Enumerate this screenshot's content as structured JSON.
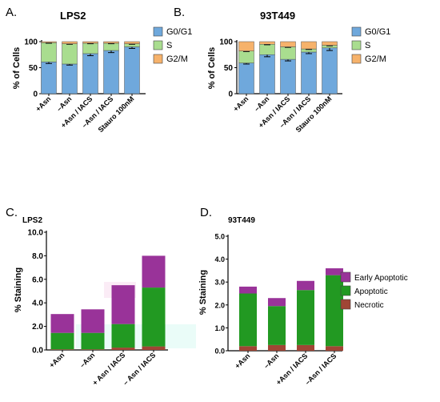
{
  "colors": {
    "g0g1": "#6fa8dc",
    "s": "#a9dd8f",
    "g2m": "#f6b26b",
    "early_apoptotic": "#993399",
    "apoptotic": "#229922",
    "necrotic": "#a04535",
    "axis": "#000000"
  },
  "chart_data": [
    {
      "panel": "A.",
      "type": "bar",
      "stacked": true,
      "title": "LPS2",
      "ylabel": "% of Cells",
      "ylim": [
        0,
        100
      ],
      "yticks": [
        0,
        50,
        100
      ],
      "categories": [
        "+Asn",
        "–Asn",
        "+Asn / IACS",
        "–Asn / IACS",
        "Stauro 100nM"
      ],
      "legend_position": "right",
      "series": [
        {
          "name": "G0/G1",
          "color_key": "g0g1",
          "values": [
            61,
            57,
            77,
            83,
            90
          ]
        },
        {
          "name": "S",
          "color_key": "s",
          "values": [
            37,
            39,
            20,
            14,
            6
          ]
        },
        {
          "name": "G2/M",
          "color_key": "g2m",
          "values": [
            2,
            4,
            3,
            3,
            4
          ]
        }
      ],
      "error_bars": [
        [
          3,
          2,
          4,
          4,
          3
        ],
        [
          1,
          1,
          1,
          1,
          1
        ],
        [
          0,
          0,
          0,
          0,
          0
        ]
      ]
    },
    {
      "panel": "B.",
      "type": "bar",
      "stacked": true,
      "title": "93T449",
      "ylabel": "% of Cells",
      "ylim": [
        0,
        100
      ],
      "yticks": [
        0,
        50,
        100
      ],
      "categories": [
        "+Asn",
        "–Asn",
        "+Asn / IACS",
        "–Asn / IACS",
        "Stauro 100nM"
      ],
      "legend_position": "right",
      "series": [
        {
          "name": "G0/G1",
          "color_key": "g0g1",
          "values": [
            59,
            75,
            66,
            80,
            88
          ]
        },
        {
          "name": "S",
          "color_key": "s",
          "values": [
            23,
            20,
            24,
            6,
            5
          ]
        },
        {
          "name": "G2/M",
          "color_key": "g2m",
          "values": [
            18,
            5,
            10,
            14,
            7
          ]
        }
      ],
      "error_bars": [
        [
          2,
          4,
          3,
          3,
          5
        ],
        [
          1,
          1,
          1,
          1,
          1
        ],
        [
          0,
          0,
          0,
          0,
          0
        ]
      ]
    },
    {
      "panel": "C.",
      "type": "bar",
      "stacked": true,
      "title": "LPS2",
      "ylabel": "% Staining",
      "ylim": [
        0,
        10
      ],
      "yticks": [
        "0.0",
        "2.0",
        "4.0",
        "6.0",
        "8.0",
        "10.0"
      ],
      "categories": [
        "+Asn",
        "–Asn",
        "+ Asn / IACS",
        "– Asn / IACS"
      ],
      "series": [
        {
          "name": "Early Apoptotic",
          "color_key": "early_apoptotic",
          "values": [
            1.6,
            2.0,
            3.3,
            2.7
          ]
        },
        {
          "name": "Apoptotic",
          "color_key": "apoptotic",
          "values": [
            1.4,
            1.4,
            2.0,
            5.0
          ]
        },
        {
          "name": "Necrotic",
          "color_key": "necrotic",
          "values": [
            0.05,
            0.05,
            0.2,
            0.3
          ]
        }
      ]
    },
    {
      "panel": "D.",
      "type": "bar",
      "stacked": true,
      "title": "93T449",
      "ylabel": "% Staining",
      "ylim": [
        0,
        5
      ],
      "yticks": [
        "0.0",
        "1.0",
        "2.0",
        "3.0",
        "4.0",
        "5.0"
      ],
      "categories": [
        "+Asn",
        "–Asn",
        "+Asn / IACS",
        "–Asn / IACS"
      ],
      "legend_position": "right",
      "series": [
        {
          "name": "Early Apoptotic",
          "color_key": "early_apoptotic",
          "values": [
            0.3,
            0.35,
            0.4,
            0.3
          ]
        },
        {
          "name": "Apoptotic",
          "color_key": "apoptotic",
          "values": [
            2.3,
            1.7,
            2.4,
            3.1
          ]
        },
        {
          "name": "Necrotic",
          "color_key": "necrotic",
          "values": [
            0.2,
            0.25,
            0.25,
            0.2
          ]
        }
      ]
    }
  ]
}
